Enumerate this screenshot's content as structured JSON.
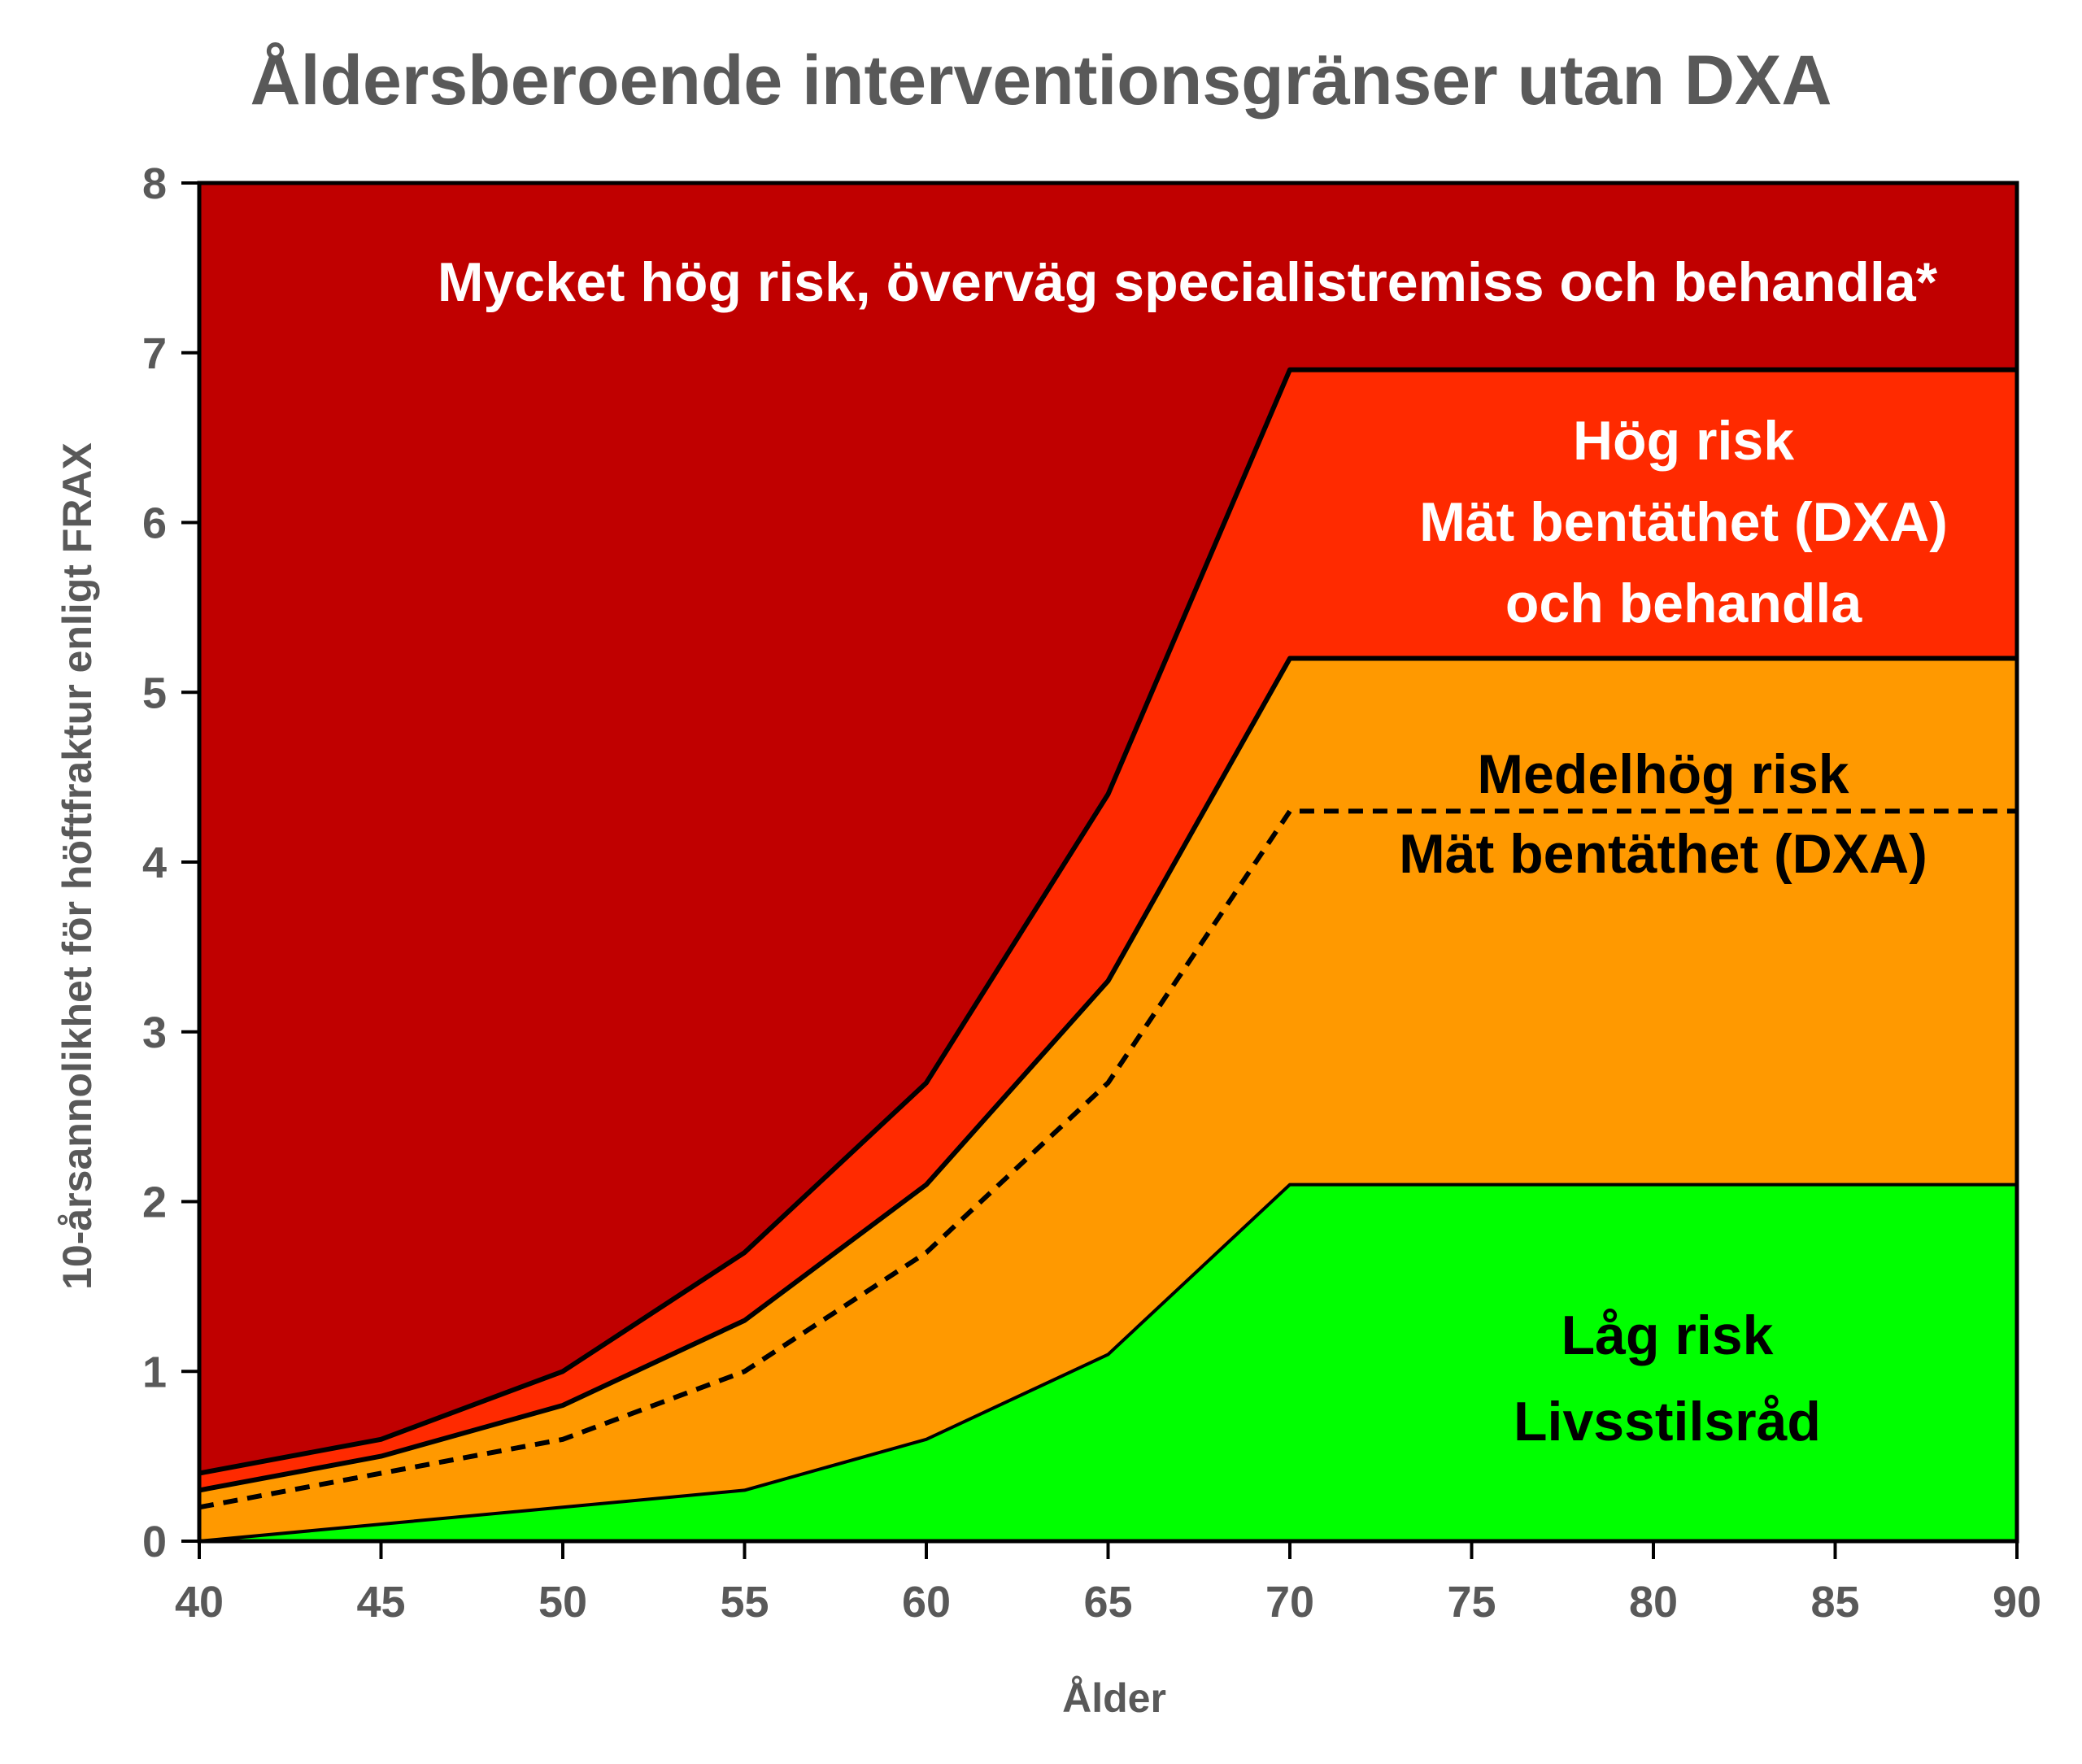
{
  "chart_data": {
    "type": "area",
    "title": "Åldersberoende interventionsgränser utan DXA",
    "xlabel": "Ålder",
    "ylabel": "10-årsannolikhet för höftfraktur enligt FRAX",
    "xlim": [
      40,
      90
    ],
    "ylim": [
      0,
      8
    ],
    "x_ticks": [
      40,
      45,
      50,
      55,
      60,
      65,
      70,
      75,
      80,
      85,
      90
    ],
    "y_ticks": [
      0,
      1,
      2,
      3,
      4,
      5,
      6,
      7,
      8
    ],
    "grid": false,
    "x": [
      40,
      45,
      50,
      55,
      60,
      65,
      70,
      90
    ],
    "thresholds": {
      "low_upper": [
        0.0,
        0.1,
        0.2,
        0.3,
        0.6,
        1.1,
        2.1,
        2.1
      ],
      "dxa_dashed": [
        0.2,
        0.4,
        0.6,
        1.0,
        1.7,
        2.7,
        4.3,
        4.3
      ],
      "intermediate_upper": [
        0.3,
        0.5,
        0.8,
        1.3,
        2.1,
        3.3,
        5.2,
        5.2
      ],
      "high_upper": [
        0.4,
        0.6,
        1.0,
        1.7,
        2.7,
        4.4,
        6.9,
        6.9
      ]
    },
    "zones": [
      {
        "lines": [
          "Mycket hög risk, överväg specialistremiss och behandla*"
        ],
        "color": "#C00000",
        "text_color": "#FFFFFF"
      },
      {
        "lines": [
          "Hög risk",
          "Mät bentäthet (DXA)",
          "och behandla"
        ],
        "color": "#FF2A00",
        "text_color": "#FFFFFF"
      },
      {
        "lines": [
          "Medelhög risk",
          "Mät bentäthet (DXA)"
        ],
        "color": "#FF9900",
        "text_color": "#000000"
      },
      {
        "lines": [
          "Låg risk",
          "Livsstilsråd"
        ],
        "color": "#00FF00",
        "text_color": "#000000"
      }
    ]
  }
}
